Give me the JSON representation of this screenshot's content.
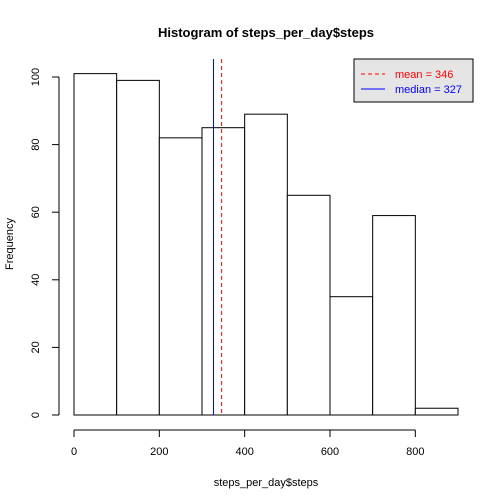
{
  "chart_data": {
    "type": "bar",
    "title": "Histogram of steps_per_day$steps",
    "xlabel": "steps_per_day$steps",
    "ylabel": "Frequency",
    "bins": [
      {
        "from": 0,
        "to": 100,
        "count": 101
      },
      {
        "from": 100,
        "to": 200,
        "count": 99
      },
      {
        "from": 200,
        "to": 300,
        "count": 82
      },
      {
        "from": 300,
        "to": 400,
        "count": 85
      },
      {
        "from": 400,
        "to": 500,
        "count": 89
      },
      {
        "from": 500,
        "to": 600,
        "count": 65
      },
      {
        "from": 600,
        "to": 700,
        "count": 35
      },
      {
        "from": 700,
        "to": 800,
        "count": 59
      },
      {
        "from": 800,
        "to": 900,
        "count": 2
      }
    ],
    "xticks": [
      0,
      200,
      400,
      600,
      800
    ],
    "yticks": [
      0,
      20,
      40,
      60,
      80,
      100
    ],
    "xlim": [
      0,
      900
    ],
    "ylim": [
      0,
      105
    ],
    "vlines": [
      {
        "name": "mean",
        "value": 346,
        "color": "#ff0000",
        "style": "dashed"
      },
      {
        "name": "median",
        "value": 327,
        "color": "#0000ff",
        "style": "solid"
      }
    ],
    "legend": {
      "placement": "top-right",
      "background": "#e5e5e5",
      "entries": [
        {
          "label": "mean = 346",
          "color": "#ff0000",
          "style": "dashed"
        },
        {
          "label": "median = 327",
          "color": "#0000ff",
          "style": "solid"
        }
      ]
    }
  }
}
